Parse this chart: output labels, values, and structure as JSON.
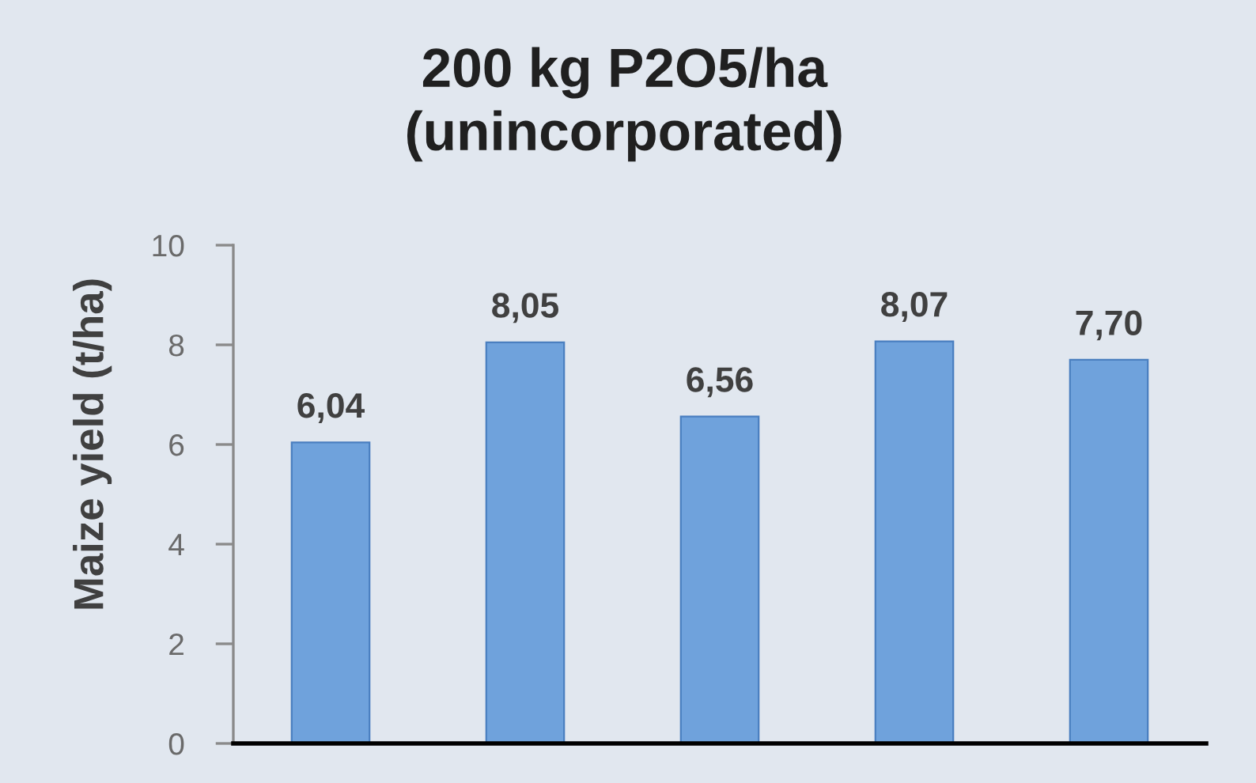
{
  "chart_data": {
    "type": "bar",
    "title": "200 kg P2O5/ha\n(unincorporated)",
    "ylabel": "Maize yield (t/ha)",
    "categories": [
      null,
      null,
      null,
      null,
      null
    ],
    "values": [
      6.04,
      8.05,
      6.56,
      8.07,
      7.7
    ],
    "value_labels": [
      "6,04",
      "8,05",
      "6,56",
      "8,07",
      "7,70"
    ],
    "color": "#6fa2dc",
    "ylim": [
      0,
      10
    ],
    "yticks": [
      0,
      2,
      4,
      6,
      8,
      10
    ],
    "tick_labels": "y",
    "grid": false
  }
}
